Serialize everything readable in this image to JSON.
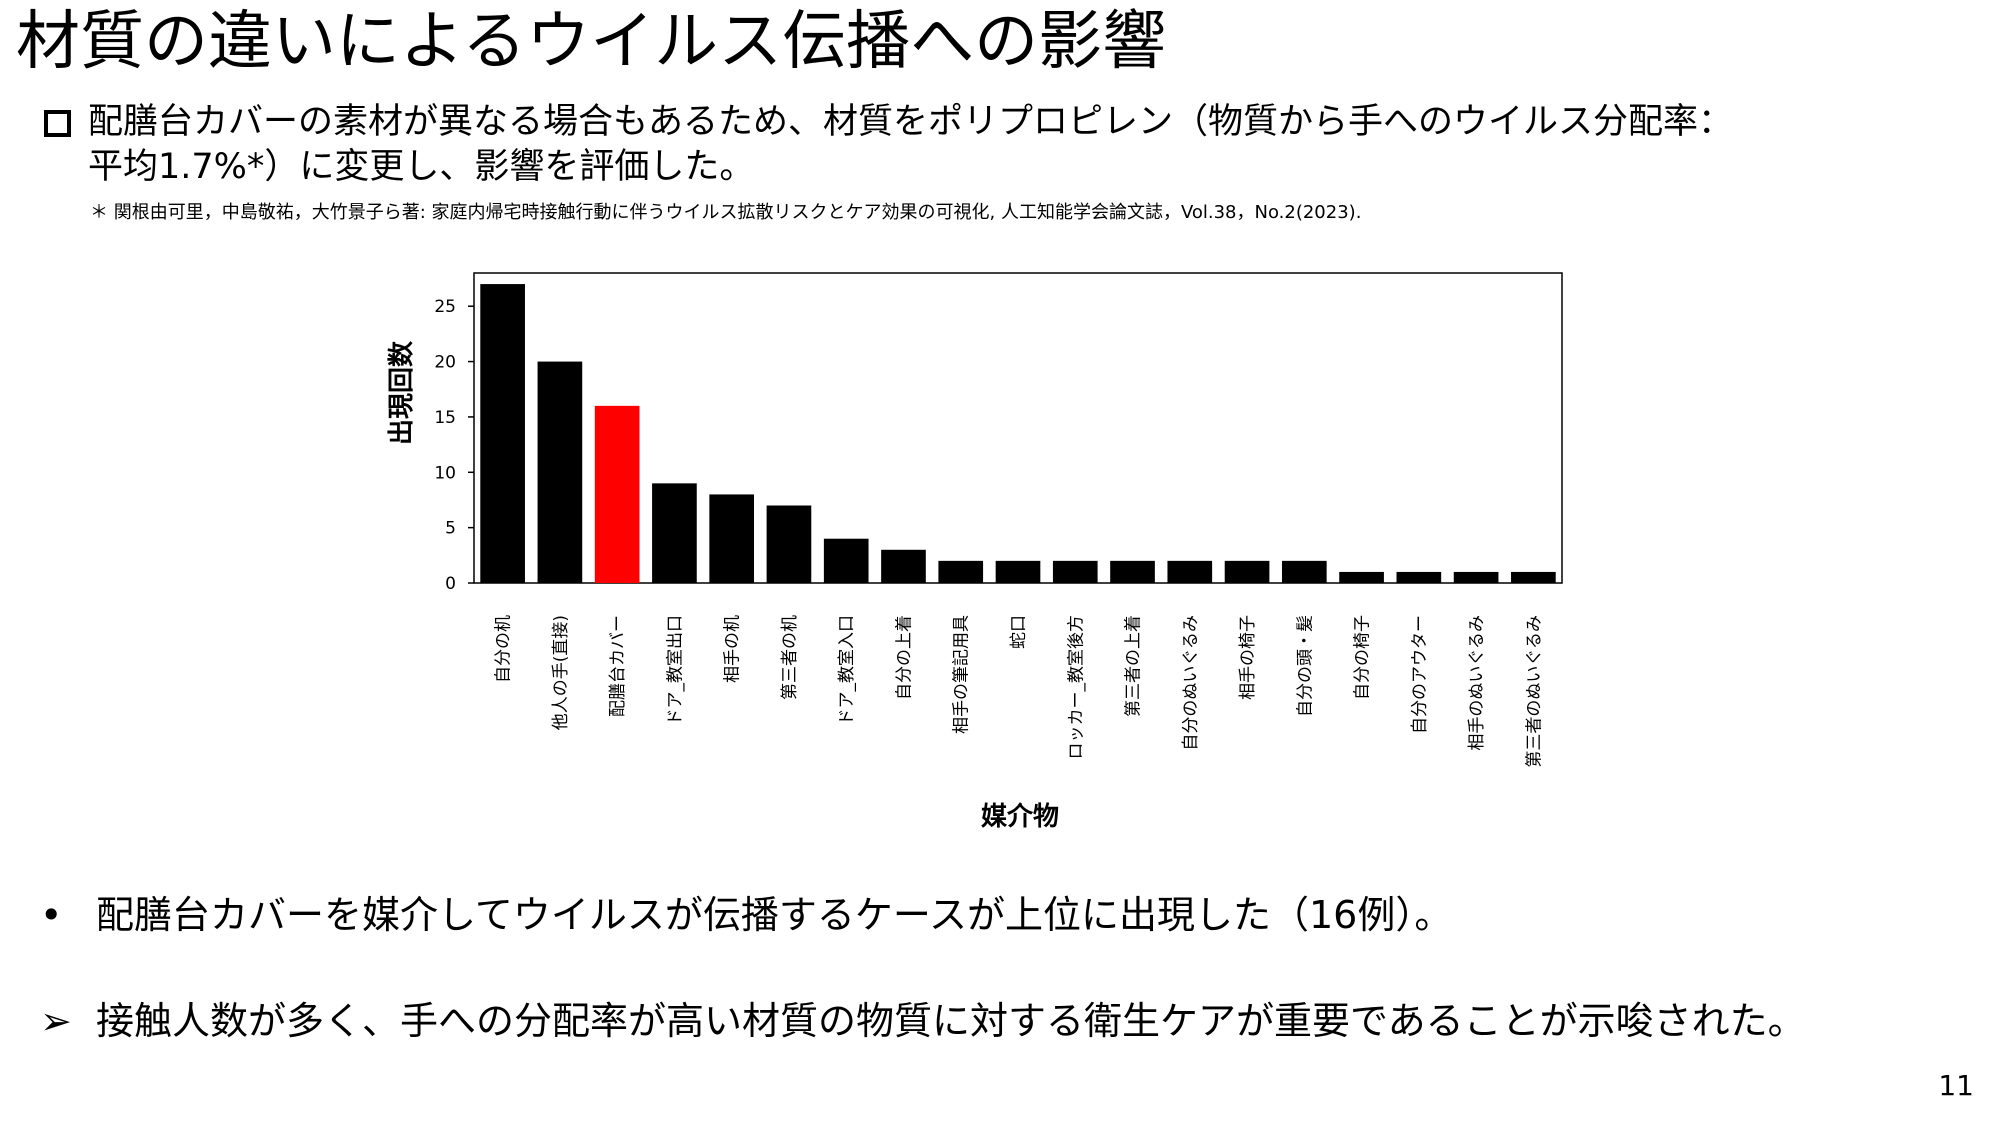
{
  "slide": {
    "title": "材質の違いによるウイルス伝播への影響",
    "intro_line1": "配膳台カバーの素材が異なる場合もあるため、材質をポリプロピレン（物質から手へのウイルス分配率：",
    "intro_line2": "平均1.7%*）に変更し、影響を評価した。",
    "reference": "＊ 関根由可里，中島敬祐，大竹景子ら著: 家庭内帰宅時接触行動に伴うウイルス拡散リスクとケア効果の可視化, 人工知能学会論文誌，Vol.38，No.2(2023).",
    "bullet1_mark": "•",
    "bullet1": "配膳台カバーを媒介してウイルスが伝播するケースが上位に出現した（16例）。",
    "bullet2_mark": "➢",
    "bullet2": "接触人数が多く、手への分配率が高い材質の物質に対する衛生ケアが重要であることが示唆された。",
    "page_number": "11"
  },
  "chart_data": {
    "type": "bar",
    "title": "",
    "xlabel": "媒介物",
    "ylabel": "出現回数",
    "ylim": [
      0,
      28
    ],
    "yticks": [
      0,
      5,
      10,
      15,
      20,
      25
    ],
    "categories": [
      "自分の机",
      "他人の手(直接)",
      "配膳台カバー",
      "ドア_教室出口",
      "相手の机",
      "第三者の机",
      "ドア_教室入口",
      "自分の上着",
      "相手の筆記用具",
      "蛇口",
      "ロッカー_教室後方",
      "第三者の上着",
      "自分のぬいぐるみ",
      "相手の椅子",
      "自分の頭・髪",
      "自分の椅子",
      "自分のアウター",
      "相手のぬいぐるみ",
      "第三者のぬいぐるみ"
    ],
    "values": [
      27,
      20,
      16,
      9,
      8,
      7,
      4,
      3,
      2,
      2,
      2,
      2,
      2,
      2,
      2,
      1,
      1,
      1,
      1
    ],
    "highlight_index": 2,
    "bar_color": "#000000",
    "highlight_color": "#ff0000",
    "grid": false,
    "legend": "none"
  }
}
